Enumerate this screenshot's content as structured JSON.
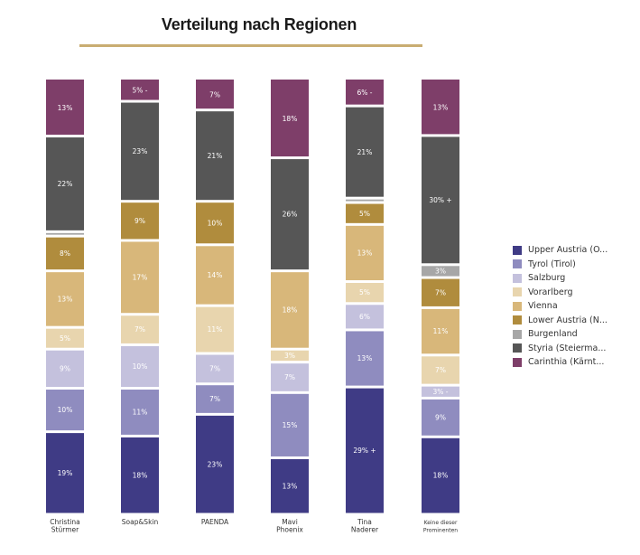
{
  "chart_data": {
    "type": "bar",
    "stacked": true,
    "title": "Verteilung nach Regionen",
    "xlabel": "",
    "ylabel": "",
    "categories": [
      "Christina\nStürmer",
      "Soap&Skin",
      "PAENDA",
      "Mavi\nPhoenix",
      "Tina\nNaderer",
      "Keine dieser\nProminenten"
    ],
    "series": [
      {
        "name": "Upper Austria (O...",
        "color": "#3f3b85",
        "values": [
          19,
          18,
          23,
          13,
          29,
          18
        ],
        "labels": [
          "19%",
          "18%",
          "23%",
          "13%",
          "29% +",
          "18%"
        ]
      },
      {
        "name": "Tyrol (Tirol)",
        "color": "#8f8cbf",
        "values": [
          10,
          11,
          7,
          15,
          13,
          9
        ],
        "labels": [
          "10%",
          "11%",
          "7%",
          "15%",
          "13%",
          "9%"
        ]
      },
      {
        "name": "Salzburg",
        "color": "#c4c1dd",
        "values": [
          9,
          10,
          7,
          7,
          6,
          3
        ],
        "labels": [
          "9%",
          "10%",
          "7%",
          "7%",
          "6%",
          "3% -"
        ]
      },
      {
        "name": "Vorarlberg",
        "color": "#e8d5ae",
        "values": [
          5,
          7,
          11,
          3,
          5,
          7
        ],
        "labels": [
          "5%",
          "7%",
          "11%",
          "3%",
          "5%",
          "7%"
        ]
      },
      {
        "name": "Vienna",
        "color": "#d8b77a",
        "values": [
          13,
          17,
          14,
          18,
          13,
          11
        ],
        "labels": [
          "13%",
          "17%",
          "14%",
          "18%",
          "13%",
          "11%"
        ]
      },
      {
        "name": "Lower Austria (N...",
        "color": "#b08c3d",
        "values": [
          8,
          9,
          10,
          0,
          5,
          7
        ],
        "labels": [
          "8%",
          "9%",
          "10%",
          "",
          "5%",
          "7%"
        ]
      },
      {
        "name": "Burgenland",
        "color": "#a7a7a7",
        "values": [
          1,
          0,
          0,
          0,
          1,
          3
        ],
        "labels": [
          "",
          "",
          "",
          "",
          "",
          "3%"
        ]
      },
      {
        "name": "Styria (Steierma...",
        "color": "#565656",
        "values": [
          22,
          23,
          21,
          26,
          21,
          30
        ],
        "labels": [
          "22%",
          "23%",
          "21%",
          "26%",
          "21%",
          "30% +"
        ]
      },
      {
        "name": "Carinthia (Kärnt...",
        "color": "#7e3e69",
        "values": [
          13,
          5,
          7,
          18,
          6,
          13
        ],
        "labels": [
          "13%",
          "5% -",
          "7%",
          "18%",
          "6% -",
          "13%"
        ]
      }
    ],
    "legend": "right",
    "grid": false
  }
}
